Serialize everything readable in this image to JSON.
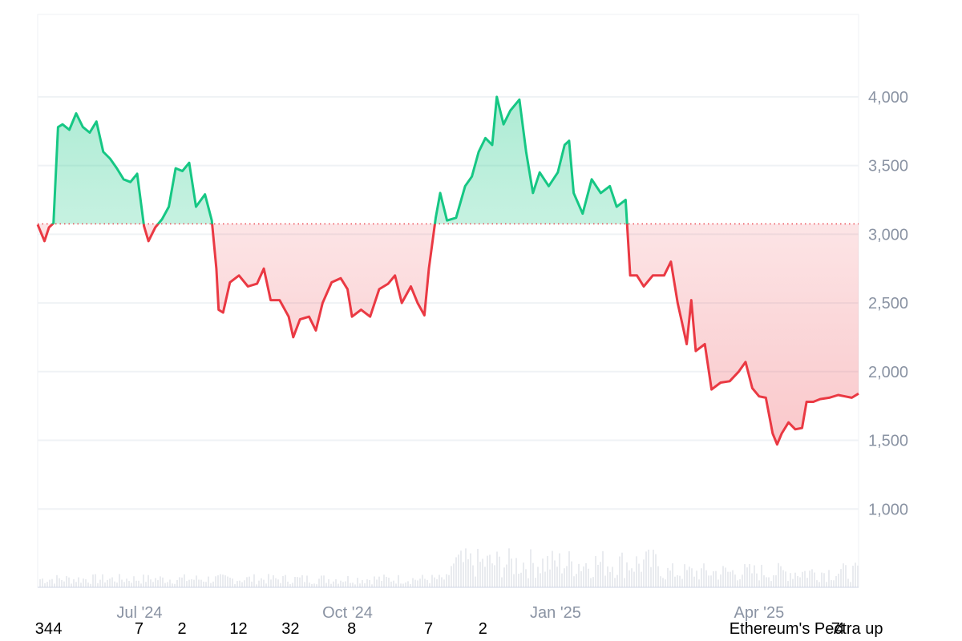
{
  "chart_data": {
    "type": "area",
    "title": "",
    "xlabel": "",
    "ylabel": "",
    "baseline": 3075,
    "ylim": [
      430,
      4600
    ],
    "y_ticks": [
      {
        "value": 4000,
        "label": "4,000"
      },
      {
        "value": 3500,
        "label": "3,500"
      },
      {
        "value": 3000,
        "label": "3,000"
      },
      {
        "value": 2500,
        "label": "2,500"
      },
      {
        "value": 2000,
        "label": "2,000"
      },
      {
        "value": 1500,
        "label": "1,500"
      },
      {
        "value": 1000,
        "label": "1,000"
      }
    ],
    "x_range": [
      "2024-05-17",
      "2025-05-15"
    ],
    "x_ticks": [
      {
        "date": "2024-07-01",
        "label": "Jul '24"
      },
      {
        "date": "2024-10-01",
        "label": "Oct '24"
      },
      {
        "date": "2025-01-01",
        "label": "Jan '25"
      },
      {
        "date": "2025-04-01",
        "label": "Apr '25"
      }
    ],
    "colors": {
      "up": "#16c784",
      "down": "#ea3943",
      "baseline": "#ea3943",
      "grid": "#eff2f5",
      "tick": "#8a93a3",
      "volume": "#e9ebef"
    },
    "series": [
      {
        "values": [
          [
            "2024-05-17",
            3070
          ],
          [
            "2024-05-20",
            2950
          ],
          [
            "2024-05-22",
            3050
          ],
          [
            "2024-05-24",
            3080
          ],
          [
            "2024-05-26",
            3780
          ],
          [
            "2024-05-28",
            3800
          ],
          [
            "2024-05-31",
            3760
          ],
          [
            "2024-06-03",
            3880
          ],
          [
            "2024-06-06",
            3780
          ],
          [
            "2024-06-09",
            3740
          ],
          [
            "2024-06-12",
            3820
          ],
          [
            "2024-06-15",
            3600
          ],
          [
            "2024-06-18",
            3550
          ],
          [
            "2024-06-21",
            3480
          ],
          [
            "2024-06-24",
            3400
          ],
          [
            "2024-06-27",
            3380
          ],
          [
            "2024-06-30",
            3440
          ],
          [
            "2024-07-03",
            3060
          ],
          [
            "2024-07-05",
            2950
          ],
          [
            "2024-07-08",
            3050
          ],
          [
            "2024-07-11",
            3110
          ],
          [
            "2024-07-14",
            3200
          ],
          [
            "2024-07-17",
            3480
          ],
          [
            "2024-07-20",
            3460
          ],
          [
            "2024-07-23",
            3520
          ],
          [
            "2024-07-26",
            3200
          ],
          [
            "2024-07-30",
            3290
          ],
          [
            "2024-08-02",
            3100
          ],
          [
            "2024-08-04",
            2750
          ],
          [
            "2024-08-05",
            2450
          ],
          [
            "2024-08-07",
            2430
          ],
          [
            "2024-08-10",
            2650
          ],
          [
            "2024-08-14",
            2700
          ],
          [
            "2024-08-18",
            2620
          ],
          [
            "2024-08-22",
            2640
          ],
          [
            "2024-08-25",
            2750
          ],
          [
            "2024-08-28",
            2520
          ],
          [
            "2024-09-01",
            2520
          ],
          [
            "2024-09-05",
            2400
          ],
          [
            "2024-09-07",
            2250
          ],
          [
            "2024-09-10",
            2380
          ],
          [
            "2024-09-14",
            2400
          ],
          [
            "2024-09-17",
            2300
          ],
          [
            "2024-09-20",
            2500
          ],
          [
            "2024-09-24",
            2650
          ],
          [
            "2024-09-28",
            2680
          ],
          [
            "2024-10-01",
            2600
          ],
          [
            "2024-10-03",
            2400
          ],
          [
            "2024-10-07",
            2450
          ],
          [
            "2024-10-11",
            2400
          ],
          [
            "2024-10-15",
            2600
          ],
          [
            "2024-10-19",
            2640
          ],
          [
            "2024-10-22",
            2700
          ],
          [
            "2024-10-25",
            2500
          ],
          [
            "2024-10-29",
            2620
          ],
          [
            "2024-11-01",
            2500
          ],
          [
            "2024-11-04",
            2410
          ],
          [
            "2024-11-06",
            2750
          ],
          [
            "2024-11-09",
            3120
          ],
          [
            "2024-11-11",
            3300
          ],
          [
            "2024-11-14",
            3100
          ],
          [
            "2024-11-18",
            3120
          ],
          [
            "2024-11-22",
            3350
          ],
          [
            "2024-11-25",
            3420
          ],
          [
            "2024-11-28",
            3600
          ],
          [
            "2024-12-01",
            3700
          ],
          [
            "2024-12-04",
            3650
          ],
          [
            "2024-12-06",
            4000
          ],
          [
            "2024-12-09",
            3800
          ],
          [
            "2024-12-12",
            3900
          ],
          [
            "2024-12-16",
            3980
          ],
          [
            "2024-12-19",
            3600
          ],
          [
            "2024-12-22",
            3300
          ],
          [
            "2024-12-25",
            3450
          ],
          [
            "2024-12-29",
            3350
          ],
          [
            "2025-01-02",
            3450
          ],
          [
            "2025-01-05",
            3650
          ],
          [
            "2025-01-07",
            3680
          ],
          [
            "2025-01-09",
            3300
          ],
          [
            "2025-01-13",
            3150
          ],
          [
            "2025-01-17",
            3400
          ],
          [
            "2025-01-21",
            3300
          ],
          [
            "2025-01-25",
            3350
          ],
          [
            "2025-01-28",
            3200
          ],
          [
            "2025-02-01",
            3250
          ],
          [
            "2025-02-03",
            2700
          ],
          [
            "2025-02-06",
            2700
          ],
          [
            "2025-02-09",
            2620
          ],
          [
            "2025-02-13",
            2700
          ],
          [
            "2025-02-18",
            2700
          ],
          [
            "2025-02-21",
            2800
          ],
          [
            "2025-02-24",
            2500
          ],
          [
            "2025-02-26",
            2350
          ],
          [
            "2025-02-28",
            2200
          ],
          [
            "2025-03-02",
            2520
          ],
          [
            "2025-03-04",
            2150
          ],
          [
            "2025-03-08",
            2200
          ],
          [
            "2025-03-11",
            1870
          ],
          [
            "2025-03-15",
            1920
          ],
          [
            "2025-03-19",
            1930
          ],
          [
            "2025-03-23",
            2000
          ],
          [
            "2025-03-26",
            2070
          ],
          [
            "2025-03-29",
            1880
          ],
          [
            "2025-04-01",
            1820
          ],
          [
            "2025-04-04",
            1810
          ],
          [
            "2025-04-07",
            1550
          ],
          [
            "2025-04-09",
            1470
          ],
          [
            "2025-04-11",
            1550
          ],
          [
            "2025-04-14",
            1630
          ],
          [
            "2025-04-17",
            1580
          ],
          [
            "2025-04-20",
            1590
          ],
          [
            "2025-04-22",
            1780
          ],
          [
            "2025-04-25",
            1780
          ],
          [
            "2025-04-28",
            1800
          ],
          [
            "2025-05-02",
            1810
          ],
          [
            "2025-05-06",
            1830
          ],
          [
            "2025-05-09",
            1820
          ],
          [
            "2025-05-12",
            1810
          ],
          [
            "2025-05-15",
            1840
          ]
        ]
      }
    ]
  },
  "event_markers": [
    {
      "label": "34",
      "date": "2024-05-18"
    },
    {
      "label": "4",
      "date": "2024-05-26"
    },
    {
      "label": "7",
      "date": "2024-07-01"
    },
    {
      "label": "2",
      "date": "2024-07-20"
    },
    {
      "label": "12",
      "date": "2024-08-12"
    },
    {
      "label": "32",
      "date": "2024-09-04"
    },
    {
      "label": "8",
      "date": "2024-10-03"
    },
    {
      "label": "7",
      "date": "2024-11-06"
    },
    {
      "label": "2",
      "date": "2024-11-30"
    },
    {
      "label": "Ethereum's Pectra up",
      "date": "2025-03-21"
    },
    {
      "label": "7",
      "date": "2025-05-05"
    },
    {
      "label": "4",
      "date": "2025-05-07"
    }
  ]
}
